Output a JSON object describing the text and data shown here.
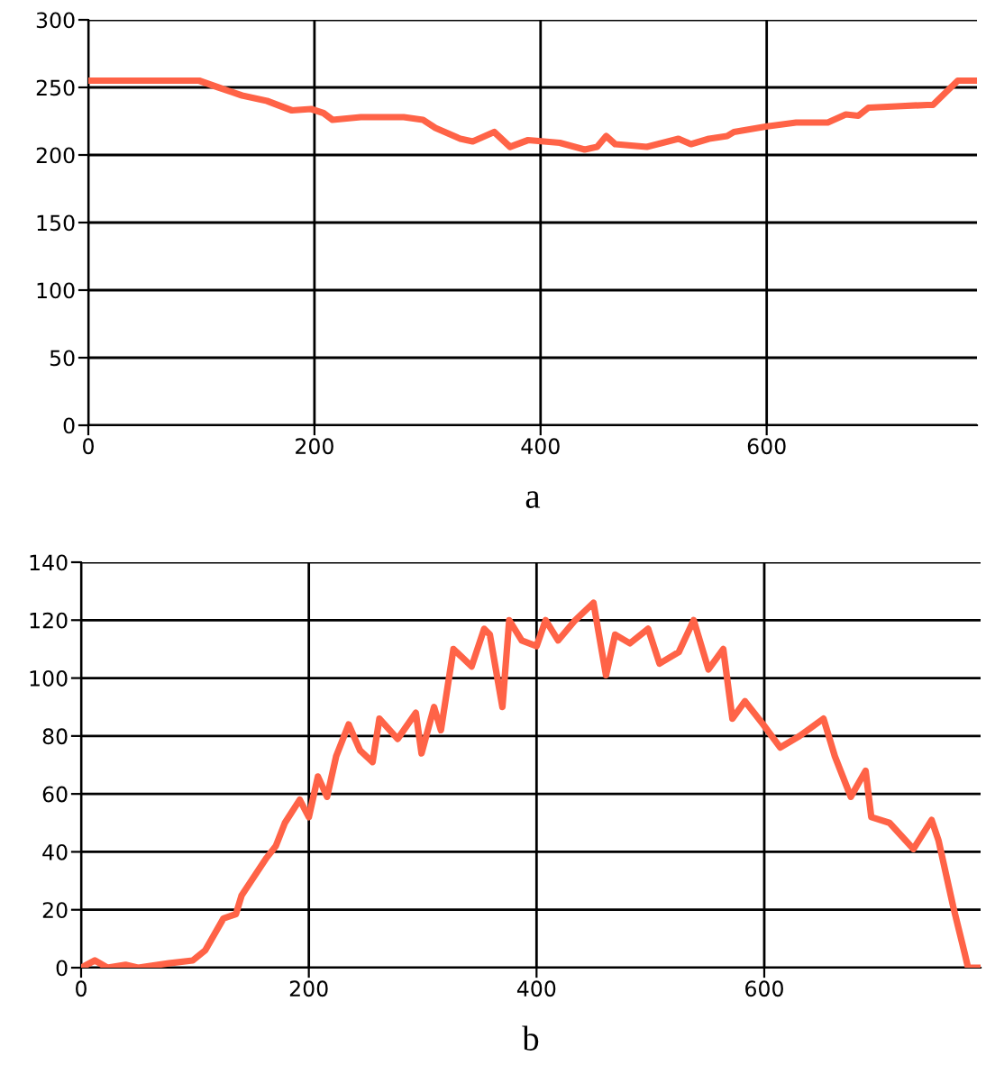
{
  "chart_data": [
    {
      "type": "line",
      "xlabel": "a",
      "xlim": [
        0,
        786
      ],
      "ylim": [
        0,
        300
      ],
      "xticks": [
        0,
        200,
        400,
        600
      ],
      "yticks": [
        0,
        50,
        100,
        150,
        200,
        250,
        300
      ],
      "grid": true,
      "marker": "none",
      "line_style": "solid",
      "series": [
        {
          "color": "#ff6347",
          "x": [
            0,
            98,
            115,
            136,
            158,
            180,
            197,
            208,
            216,
            241,
            279,
            296,
            307,
            329,
            340,
            359,
            373,
            389,
            417,
            439,
            450,
            458,
            466,
            494,
            522,
            533,
            549,
            565,
            571,
            599,
            626,
            654,
            670,
            681,
            690,
            715,
            742,
            747,
            769,
            785
          ],
          "values": [
            255,
            255,
            250,
            244,
            240,
            233,
            234,
            231,
            226,
            228,
            228,
            226,
            220,
            212,
            210,
            217,
            206,
            211,
            209,
            204,
            206,
            214,
            208,
            206,
            212,
            208,
            212,
            214,
            217,
            221,
            224,
            224,
            230,
            229,
            235,
            236,
            237,
            237,
            255,
            255
          ]
        }
      ]
    },
    {
      "type": "line",
      "xlabel": "b",
      "xlim": [
        0,
        790
      ],
      "ylim": [
        0,
        140
      ],
      "xticks": [
        0,
        200,
        400,
        600
      ],
      "yticks": [
        0,
        20,
        40,
        60,
        80,
        100,
        120,
        140
      ],
      "grid": true,
      "marker": "none",
      "line_style": "solid",
      "series": [
        {
          "color": "#ff6347",
          "x": [
            0,
            12,
            23,
            39,
            50,
            77,
            98,
            109,
            125,
            136,
            141,
            163,
            171,
            179,
            192,
            200,
            208,
            216,
            224,
            235,
            245,
            256,
            262,
            278,
            294,
            299,
            310,
            316,
            327,
            343,
            354,
            359,
            370,
            376,
            387,
            400,
            408,
            419,
            434,
            450,
            461,
            469,
            482,
            498,
            508,
            525,
            538,
            551,
            564,
            572,
            583,
            599,
            614,
            631,
            652,
            662,
            676,
            689,
            694,
            710,
            731,
            747,
            753,
            766,
            776,
            779,
            790
          ],
          "values": [
            0,
            2.5,
            0,
            1,
            0,
            1.5,
            2.5,
            6,
            17,
            18.5,
            25,
            38,
            42,
            50,
            58,
            52,
            66,
            59,
            73,
            84,
            75,
            71,
            86,
            79,
            88,
            74,
            90,
            82,
            110,
            104,
            117,
            115,
            90,
            120,
            113,
            111,
            120,
            113,
            120,
            126,
            101,
            115,
            112,
            117,
            105,
            109,
            120,
            103,
            110,
            86,
            92,
            84,
            76,
            80,
            86,
            73,
            59,
            68,
            52,
            50,
            41,
            51,
            44,
            21,
            5,
            0,
            0
          ]
        }
      ]
    }
  ]
}
